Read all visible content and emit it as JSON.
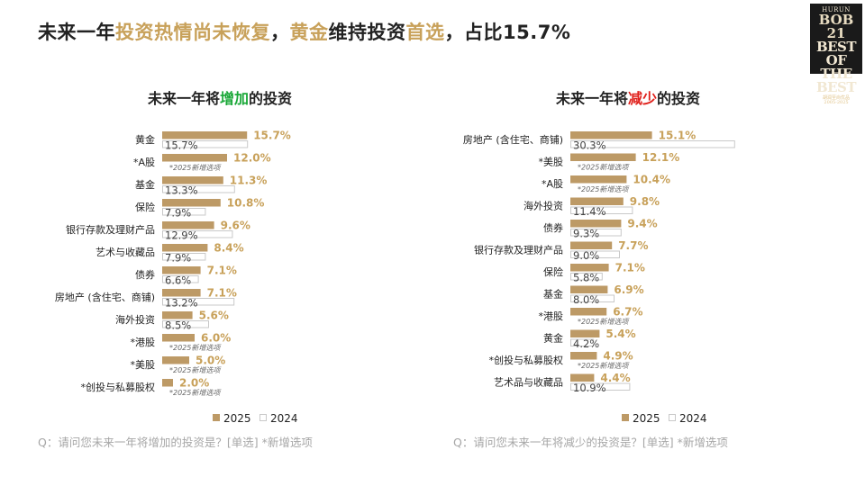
{
  "title": {
    "part1": "未来一年",
    "part2": "投资热情尚未恢复",
    "part3": "，",
    "part4": "黄金",
    "part5": "维持投资",
    "part6": "首选",
    "part7": "，占比15.7%"
  },
  "logo": {
    "line1": "HURUN",
    "line2": "BOB 21",
    "line3": "BEST OF THE BEST",
    "line4": "胡润至尚优品",
    "line5": "2005-2025"
  },
  "colors": {
    "bar_2025": "#bd9a66",
    "bar_2024_fill": "#ffffff",
    "bar_2024_border": "#c9c9c9",
    "accent_gold": "#c8a15a",
    "increase": "#1aa838",
    "decrease": "#e0201b"
  },
  "left_chart": {
    "title_prefix": "未来一年将",
    "title_emphasis": "增加",
    "title_suffix": "的投资",
    "footnote": "Q：请问您未来一年将增加的投资是？[单选] *新增选项"
  },
  "right_chart": {
    "title_prefix": "未来一年将",
    "title_emphasis": "减少",
    "title_suffix": "的投资",
    "footnote": "Q：请问您未来一年将减少的投资是？[单选] *新增选项"
  },
  "chart_data": [
    {
      "type": "bar",
      "orientation": "horizontal",
      "categories": [
        "黄金",
        "*A股",
        "基金",
        "保险",
        "银行存款及理财产品",
        "艺术与收藏品",
        "债券",
        "房地产 (含住宅、商铺)",
        "海外投资",
        "*港股",
        "*美股",
        "*创投与私募股权"
      ],
      "series": [
        {
          "name": "2025",
          "values": [
            15.7,
            12.0,
            11.3,
            10.8,
            9.6,
            8.4,
            7.1,
            7.1,
            5.6,
            6.0,
            5.0,
            2.0
          ]
        },
        {
          "name": "2024",
          "values": [
            15.7,
            null,
            13.3,
            7.9,
            12.9,
            7.9,
            6.6,
            13.2,
            8.5,
            null,
            null,
            null
          ]
        }
      ],
      "value_labels_2025": [
        "15.7%",
        "12.0%",
        "11.3%",
        "10.8%",
        "9.6%",
        "8.4%",
        "7.1%",
        "7.1%",
        "5.6%",
        "6.0%",
        "5.0%",
        "2.0%"
      ],
      "value_labels_2024": [
        "15.7%",
        "*2025新增选项",
        "13.3%",
        "7.9%",
        "12.9%",
        "7.9%",
        "6.6%",
        "13.2%",
        "8.5%",
        "*2025新增选项",
        "*2025新增选项",
        "*2025新增选项"
      ],
      "xlim": [
        0,
        31
      ],
      "legend": [
        "2025",
        "2024"
      ],
      "legend_position": "bottom"
    },
    {
      "type": "bar",
      "orientation": "horizontal",
      "categories": [
        "房地产 (含住宅、商铺)",
        "*美股",
        "*A股",
        "海外投资",
        "债券",
        "银行存款及理财产品",
        "保险",
        "基金",
        "*港股",
        "黄金",
        "*创投与私募股权",
        "艺术品与收藏品"
      ],
      "series": [
        {
          "name": "2025",
          "values": [
            15.1,
            12.1,
            10.4,
            9.8,
            9.4,
            7.7,
            7.1,
            6.9,
            6.7,
            5.4,
            4.9,
            4.4
          ]
        },
        {
          "name": "2024",
          "values": [
            30.3,
            null,
            null,
            11.4,
            9.3,
            9.0,
            5.8,
            8.0,
            null,
            4.2,
            null,
            10.9
          ]
        }
      ],
      "value_labels_2025": [
        "15.1%",
        "12.1%",
        "10.4%",
        "9.8%",
        "9.4%",
        "7.7%",
        "7.1%",
        "6.9%",
        "6.7%",
        "5.4%",
        "4.9%",
        "4.4%"
      ],
      "value_labels_2024": [
        "30.3%",
        "*2025新增选项",
        "*2025新增选项",
        "11.4%",
        "9.3%",
        "9.0%",
        "5.8%",
        "8.0%",
        "*2025新增选项",
        "4.2%",
        "*2025新增选项",
        "10.9%"
      ],
      "xlim": [
        0,
        31
      ],
      "legend": [
        "2025",
        "2024"
      ],
      "legend_position": "bottom"
    }
  ]
}
